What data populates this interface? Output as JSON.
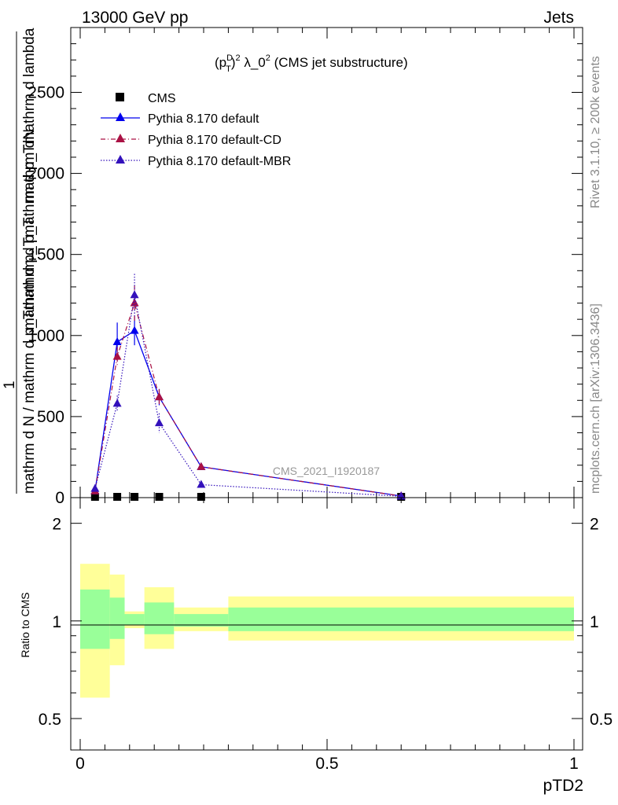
{
  "header": {
    "left": "13000 GeV pp",
    "right": "Jets"
  },
  "side_text": {
    "rivet": "Rivet 3.1.10, ≥ 200k events",
    "mcplots": "mcplots.cern.ch [arXiv:1306.3436]"
  },
  "main_panel": {
    "title_prefix": "(p",
    "title_sup_D": "D",
    "title_sub_T": "T",
    "title_pow": "2",
    "title_rest": " λ_0",
    "title_pow2": "2",
    "title_suffix": " (CMS jet substructure)",
    "ylabel_top": "mathrm dN",
    "ylabel_numer": "mathrm d p_Tmathrm d p_Tmathrm d lambda",
    "ylabel_one": "1",
    "ylabel_denom": "mathrm d N / mathrm d p_Tmathrm d p_T",
    "ytick_labels": [
      "0",
      "500",
      "1000",
      "1500",
      "2000",
      "2500"
    ],
    "watermark": "CMS_2021_I1920187"
  },
  "ratio_panel": {
    "ylabel": "Ratio to CMS",
    "ytick_labels": [
      "0.5",
      "1",
      "2"
    ]
  },
  "xaxis": {
    "label": "pTD2",
    "tick_labels": [
      "0",
      "0.5",
      "1"
    ]
  },
  "legend": [
    {
      "label": "CMS",
      "color": "#000000"
    },
    {
      "label": "Pythia 8.170 default",
      "color": "#0000ee"
    },
    {
      "label": "Pythia 8.170 default-CD",
      "color": "#aa1144"
    },
    {
      "label": "Pythia 8.170 default-MBR",
      "color": "#3311bb"
    }
  ],
  "chart_data": {
    "type": "line",
    "title": "(p_T^D)^2 λ_0^2 (CMS jet substructure)",
    "xlabel": "pTD2",
    "ylabel": "1/(mathrm d N / mathrm d p_T mathrm d p_T) mathrm d^2N/(mathrm d p_T mathrm d p_T mathrm d lambda)",
    "xlim": [
      0,
      1
    ],
    "ylim": [
      0,
      2900
    ],
    "ratio_ylim": [
      0.4,
      2.4
    ],
    "x": [
      0.03,
      0.075,
      0.11,
      0.16,
      0.245,
      0.65
    ],
    "series": [
      {
        "name": "CMS",
        "values": [
          0,
          0,
          0,
          0,
          0,
          0
        ],
        "style": "square"
      },
      {
        "name": "Pythia 8.170 default",
        "values": [
          40,
          960,
          1030,
          620,
          190,
          10
        ],
        "errors": [
          15,
          120,
          90,
          50,
          20,
          3
        ],
        "style": "solid"
      },
      {
        "name": "Pythia 8.170 default-CD",
        "values": [
          40,
          870,
          1200,
          620,
          190,
          10
        ],
        "errors": [
          15,
          60,
          110,
          50,
          20,
          3
        ],
        "style": "dashdot"
      },
      {
        "name": "Pythia 8.170 default-MBR",
        "values": [
          55,
          580,
          1250,
          460,
          80,
          8
        ],
        "errors": [
          15,
          50,
          130,
          60,
          10,
          3
        ],
        "style": "dotted"
      }
    ],
    "ratio_bands": [
      {
        "x": [
          0.0,
          0.06
        ],
        "green": [
          0.82,
          1.25
        ],
        "yellow": [
          0.58,
          1.5
        ]
      },
      {
        "x": [
          0.06,
          0.09
        ],
        "green": [
          0.88,
          1.18
        ],
        "yellow": [
          0.73,
          1.39
        ]
      },
      {
        "x": [
          0.09,
          0.13
        ],
        "green": [
          0.97,
          1.05
        ],
        "yellow": [
          0.95,
          1.07
        ]
      },
      {
        "x": [
          0.13,
          0.19
        ],
        "green": [
          0.91,
          1.14
        ],
        "yellow": [
          0.82,
          1.27
        ]
      },
      {
        "x": [
          0.19,
          0.3
        ],
        "green": [
          0.96,
          1.05
        ],
        "yellow": [
          0.93,
          1.1
        ]
      },
      {
        "x": [
          0.3,
          1.0
        ],
        "green": [
          0.93,
          1.1
        ],
        "yellow": [
          0.87,
          1.19
        ]
      }
    ]
  }
}
